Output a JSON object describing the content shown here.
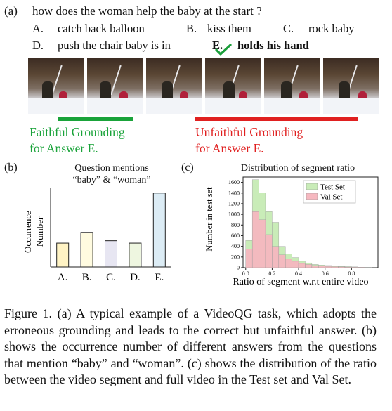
{
  "panel_a": {
    "label": "(a)",
    "question": "how does the woman help the baby at the start ?",
    "options": [
      {
        "letter": "A.",
        "text": "catch back balloon"
      },
      {
        "letter": "B.",
        "text": "kiss them"
      },
      {
        "letter": "C.",
        "text": "rock baby"
      },
      {
        "letter": "D.",
        "text": "push the chair baby is in"
      },
      {
        "letter": "E.",
        "text": "holds his hand"
      }
    ],
    "correct_icon": "check-mark-icon",
    "faithful_label_line1": "Faithful Grounding",
    "faithful_label_line2": "for Answer E.",
    "unfaithful_label_line1": "Unfaithful Grounding",
    "unfaithful_label_line2": "for Answer E.",
    "faithful_color": "#1aa33a",
    "unfaithful_color": "#e02020"
  },
  "panel_b": {
    "label": "(b)",
    "title_line1": "Question mentions",
    "title_line2": "“baby” & “woman”",
    "ylabel_line1": "Occurrence",
    "ylabel_line2": "Number"
  },
  "panel_c": {
    "label": "(c)",
    "title": "Distribution of segment ratio",
    "ylabel": "Number in test set",
    "xlabel": "Ratio of segment w.r.t entire video"
  },
  "caption": "Figure 1. (a) A typical example of a VideoQG task, which adopts the erroneous grounding and leads to the correct but unfaithful answer. (b) shows the occurrence number of different answers from the questions that mention “baby” and “woman”. (c) shows the distribution of the ratio between the video segment and full video in the Test set and Val Set.",
  "chart_data": [
    {
      "type": "bar",
      "title": "Question mentions “baby” & “woman”",
      "ylabel": "Occurrence Number",
      "categories": [
        "A.",
        "B.",
        "C.",
        "D.",
        "E."
      ],
      "values": [
        1.0,
        1.45,
        1.1,
        1.0,
        3.1
      ],
      "colors": [
        "#fff3c4",
        "#fffbe0",
        "#e7e6f2",
        "#eef6e0",
        "#dcecf5"
      ],
      "ylim": [
        0,
        3.3
      ]
    },
    {
      "type": "bar",
      "title": "Distribution of segment ratio",
      "ylabel": "Number in test set",
      "xlabel": "Ratio of segment w.r.t entire video",
      "ylim": [
        0,
        1700
      ],
      "xlim": [
        -0.02,
        1.0
      ],
      "yticks": [
        "0",
        "200",
        "400",
        "600",
        "800",
        "1000",
        "1200",
        "1400",
        "1600"
      ],
      "xticks": [
        "0.0",
        "0.2",
        "0.4",
        "0.6",
        "0.8"
      ],
      "bin_width": 0.05,
      "series": [
        {
          "name": "Test Set",
          "color": "#c9ecb8",
          "x": [
            0.0,
            0.05,
            0.1,
            0.15,
            0.2,
            0.25,
            0.3,
            0.35,
            0.4,
            0.45,
            0.5,
            0.55,
            0.6,
            0.65,
            0.7,
            0.75,
            0.8,
            0.85,
            0.9
          ],
          "values": [
            510,
            1650,
            1400,
            1050,
            850,
            400,
            260,
            190,
            120,
            90,
            60,
            50,
            40,
            30,
            25,
            20,
            15,
            10,
            8
          ]
        },
        {
          "name": "Val Set",
          "color": "#f6b8c0",
          "x": [
            0.0,
            0.05,
            0.1,
            0.15,
            0.2,
            0.25,
            0.3,
            0.35,
            0.4,
            0.45,
            0.5,
            0.55,
            0.6,
            0.65,
            0.7,
            0.75,
            0.8,
            0.85,
            0.9
          ],
          "values": [
            350,
            1050,
            900,
            620,
            400,
            240,
            160,
            120,
            80,
            60,
            40,
            30,
            25,
            20,
            15,
            12,
            10,
            8,
            5
          ]
        }
      ],
      "legend": "top-right"
    }
  ]
}
